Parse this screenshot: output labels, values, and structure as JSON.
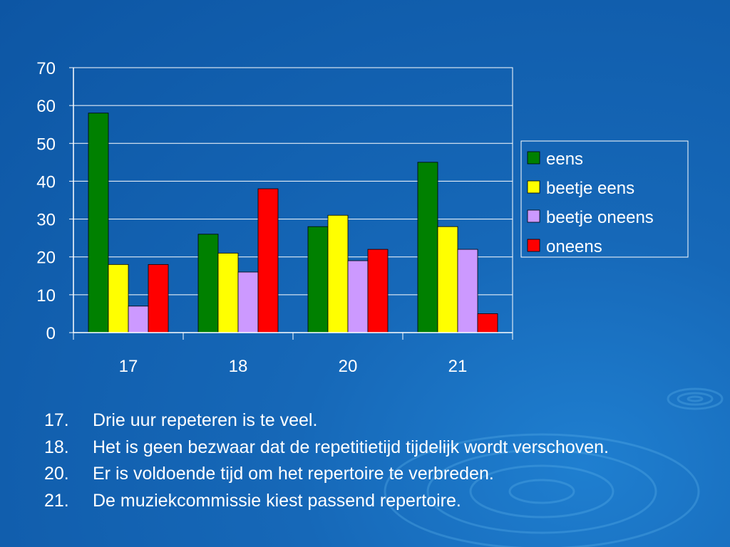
{
  "chart_data": {
    "type": "bar",
    "categories": [
      "17",
      "18",
      "20",
      "21"
    ],
    "series": [
      {
        "name": "eens",
        "color": "#008000",
        "values": [
          58,
          26,
          28,
          45
        ]
      },
      {
        "name": "beetje eens",
        "color": "#ffff00",
        "values": [
          18,
          21,
          31,
          28
        ]
      },
      {
        "name": "beetje oneens",
        "color": "#cc99ff",
        "values": [
          7,
          16,
          19,
          22
        ]
      },
      {
        "name": "oneens",
        "color": "#ff0000",
        "values": [
          18,
          38,
          22,
          5
        ]
      }
    ],
    "ylim": [
      0,
      70
    ],
    "yticks": [
      0,
      10,
      20,
      30,
      40,
      50,
      60,
      70
    ],
    "grid": true,
    "legend": "right"
  },
  "statements": [
    {
      "num": "17.",
      "text": "Drie uur repeteren is te veel."
    },
    {
      "num": "18.",
      "text": "Het is geen bezwaar dat de repetitietijd tijdelijk wordt verschoven."
    },
    {
      "num": "20.",
      "text": "Er is voldoende tijd om het repertoire te verbreden."
    },
    {
      "num": "21.",
      "text": "De muziekcommissie kiest passend repertoire."
    }
  ]
}
